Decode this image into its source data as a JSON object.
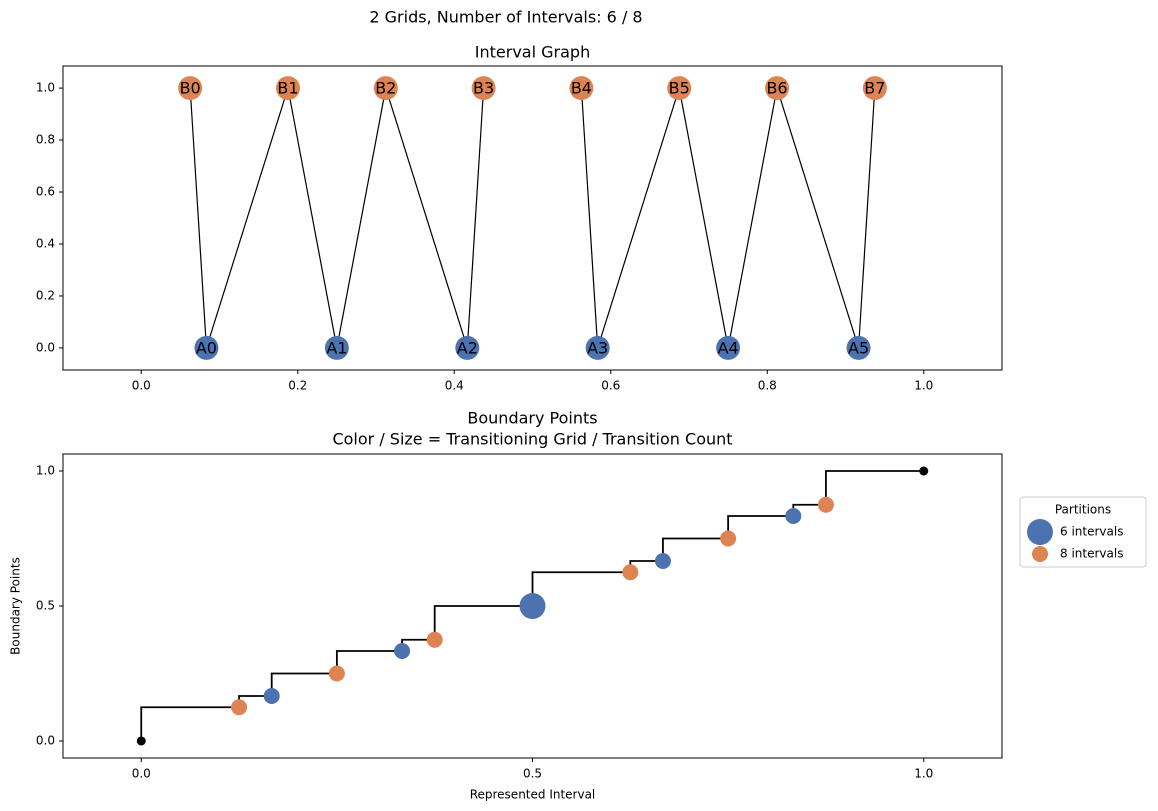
{
  "title": "2 Grids, Number of Intervals: 6 / 8",
  "chart_data": [
    {
      "type": "network",
      "title": "Interval Graph",
      "xlim": [
        -0.1,
        1.1
      ],
      "ylim": [
        -0.085,
        1.085
      ],
      "xticks": [
        {
          "value": 0,
          "label": "0.0"
        },
        0.2,
        0.4,
        0.6,
        0.8,
        {
          "value": 1,
          "label": "1.0"
        }
      ],
      "yticks": [
        {
          "value": 0,
          "label": "0.0"
        },
        0.2,
        0.4,
        0.6,
        0.8,
        {
          "value": 1,
          "label": "1.0"
        }
      ],
      "nodes": [
        {
          "label": "A0",
          "x": 0.0833,
          "y": 0,
          "color": "#4c72b0"
        },
        {
          "label": "A1",
          "x": 0.25,
          "y": 0,
          "color": "#4c72b0"
        },
        {
          "label": "A2",
          "x": 0.4167,
          "y": 0,
          "color": "#4c72b0"
        },
        {
          "label": "A3",
          "x": 0.5833,
          "y": 0,
          "color": "#4c72b0"
        },
        {
          "label": "A4",
          "x": 0.75,
          "y": 0,
          "color": "#4c72b0"
        },
        {
          "label": "A5",
          "x": 0.9167,
          "y": 0,
          "color": "#4c72b0"
        },
        {
          "label": "B0",
          "x": 0.0625,
          "y": 1,
          "color": "#dd8452"
        },
        {
          "label": "B1",
          "x": 0.1875,
          "y": 1,
          "color": "#dd8452"
        },
        {
          "label": "B2",
          "x": 0.3125,
          "y": 1,
          "color": "#dd8452"
        },
        {
          "label": "B3",
          "x": 0.4375,
          "y": 1,
          "color": "#dd8452"
        },
        {
          "label": "B4",
          "x": 0.5625,
          "y": 1,
          "color": "#dd8452"
        },
        {
          "label": "B5",
          "x": 0.6875,
          "y": 1,
          "color": "#dd8452"
        },
        {
          "label": "B6",
          "x": 0.8125,
          "y": 1,
          "color": "#dd8452"
        },
        {
          "label": "B7",
          "x": 0.9375,
          "y": 1,
          "color": "#dd8452"
        }
      ],
      "edges": [
        [
          6,
          0
        ],
        [
          0,
          7
        ],
        [
          7,
          1
        ],
        [
          1,
          8
        ],
        [
          8,
          2
        ],
        [
          2,
          9
        ],
        [
          10,
          3
        ],
        [
          3,
          11
        ],
        [
          11,
          4
        ],
        [
          4,
          12
        ],
        [
          12,
          5
        ],
        [
          5,
          13
        ]
      ],
      "edge_color": "#000000"
    },
    {
      "type": "step",
      "title": "Boundary Points",
      "subtitle": "Color / Size = Transitioning Grid / Transition Count",
      "xlabel": "Represented Interval",
      "ylabel": "Boundary Points",
      "xlim": [
        -0.1,
        1.1
      ],
      "ylim": [
        -0.063,
        1.063
      ],
      "xticks": [
        {
          "value": 0,
          "label": "0.0"
        },
        0.5,
        {
          "value": 1,
          "label": "1.0"
        }
      ],
      "yticks": [
        {
          "value": 0,
          "label": "0.0"
        },
        0.5,
        {
          "value": 1,
          "label": "1.0"
        }
      ],
      "x": [
        0,
        0.125,
        0.1667,
        0.25,
        0.3333,
        0.375,
        0.5,
        0.625,
        0.6667,
        0.75,
        0.8333,
        0.875,
        1
      ],
      "values": [
        0,
        0.125,
        0.1667,
        0.25,
        0.3333,
        0.375,
        0.5,
        0.625,
        0.6667,
        0.75,
        0.8333,
        0.875,
        1
      ],
      "line_color": "#000000",
      "endpoints": {
        "x": [
          0,
          1
        ],
        "values": [
          0,
          1
        ],
        "color": "#000000"
      },
      "series": [
        {
          "name": "6 intervals",
          "color": "#4c72b0",
          "x": [
            0.1667,
            0.3333,
            0.5,
            0.6667,
            0.8333
          ],
          "values": [
            0.1667,
            0.3333,
            0.5,
            0.6667,
            0.8333
          ],
          "sizes": [
            1,
            1,
            2,
            1,
            1
          ]
        },
        {
          "name": "8 intervals",
          "color": "#dd8452",
          "x": [
            0.125,
            0.25,
            0.375,
            0.625,
            0.75,
            0.875
          ],
          "values": [
            0.125,
            0.25,
            0.375,
            0.625,
            0.75,
            0.875
          ],
          "sizes": [
            1,
            1,
            1,
            1,
            1,
            1
          ]
        }
      ],
      "legend": {
        "title": "Partitions",
        "position": "right"
      }
    }
  ]
}
